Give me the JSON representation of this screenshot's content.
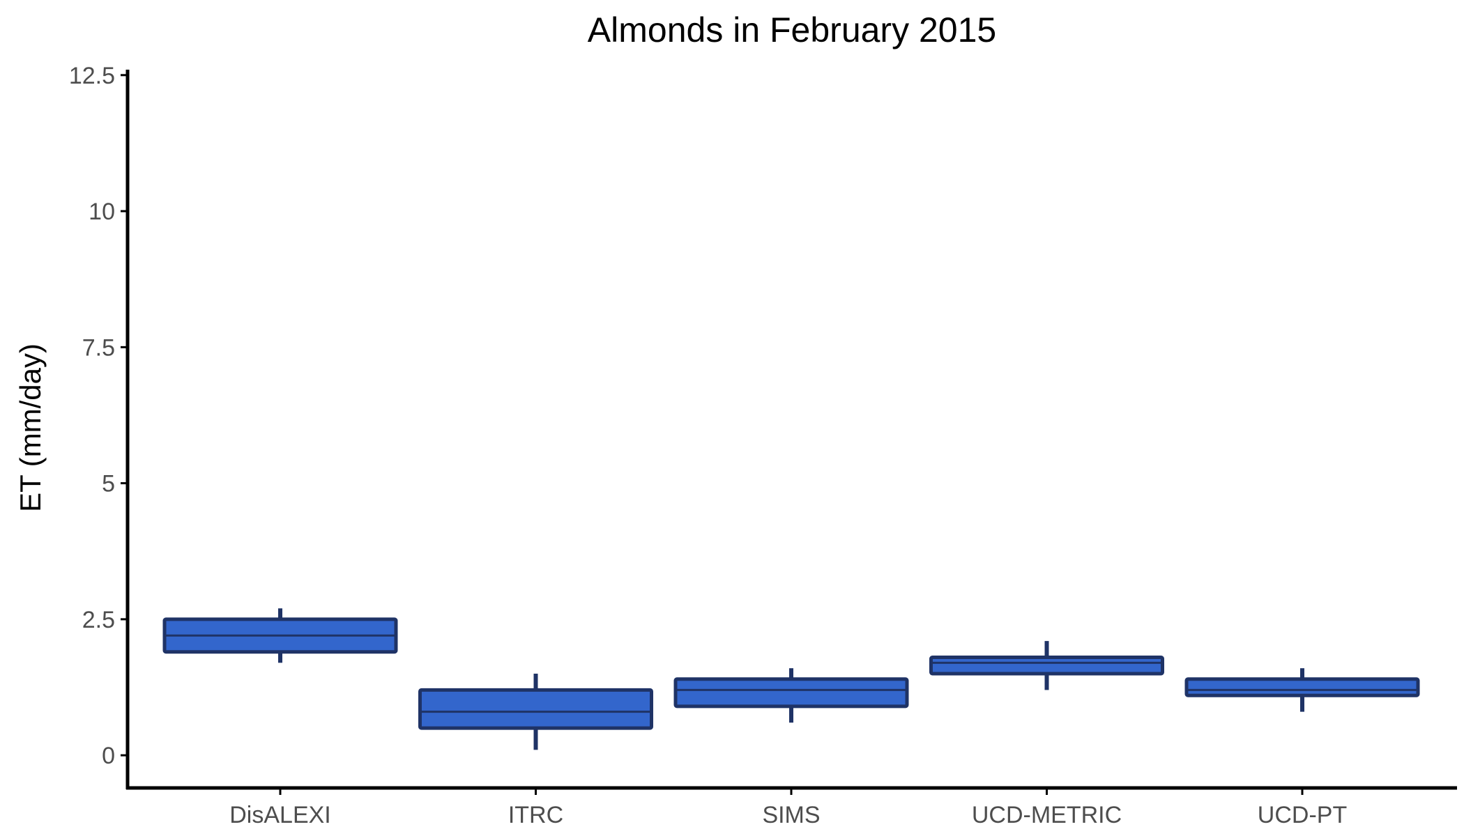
{
  "chart_data": {
    "type": "boxplot",
    "title": "Almonds in February 2015",
    "xlabel": "",
    "ylabel": "ET (mm/day)",
    "ylim": [
      -0.6,
      12.6
    ],
    "yticks": [
      0,
      2.5,
      5,
      7.5,
      10,
      12.5
    ],
    "ytick_labels": [
      "0",
      "2.5",
      "5",
      "7.5",
      "10",
      "12.5"
    ],
    "grid": false,
    "legend": "none",
    "categories": [
      "DisALEXI",
      "ITRC",
      "SIMS",
      "UCD-METRIC",
      "UCD-PT"
    ],
    "boxes": [
      {
        "category": "DisALEXI",
        "whisker_low": 1.7,
        "q1": 1.9,
        "median": 2.2,
        "q3": 2.5,
        "whisker_high": 2.7
      },
      {
        "category": "ITRC",
        "whisker_low": 0.1,
        "q1": 0.5,
        "median": 0.8,
        "q3": 1.2,
        "whisker_high": 1.5
      },
      {
        "category": "SIMS",
        "whisker_low": 0.6,
        "q1": 0.9,
        "median": 1.2,
        "q3": 1.4,
        "whisker_high": 1.6
      },
      {
        "category": "UCD-METRIC",
        "whisker_low": 1.2,
        "q1": 1.5,
        "median": 1.7,
        "q3": 1.8,
        "whisker_high": 2.1
      },
      {
        "category": "UCD-PT",
        "whisker_low": 0.8,
        "q1": 1.1,
        "median": 1.2,
        "q3": 1.4,
        "whisker_high": 1.6
      }
    ],
    "colors": {
      "box_fill": "#3366cc",
      "box_outline": "#1f3366",
      "axis": "#000000",
      "tick_label": "#4d4d4d",
      "background": "#ffffff"
    }
  }
}
